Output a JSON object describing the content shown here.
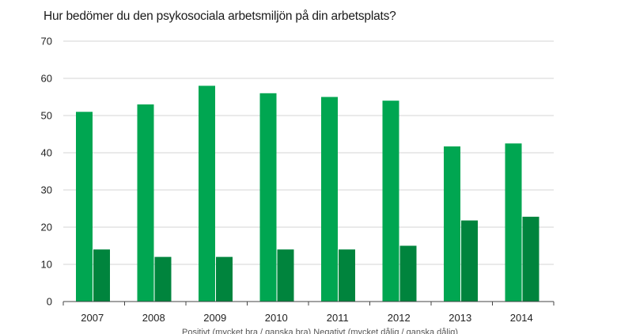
{
  "chart_data": {
    "type": "bar",
    "title": "Hur bedömer du den psykosociala arbetsmiljön på din arbetsplats?",
    "xlabel": "",
    "ylabel": "",
    "categories": [
      "2007",
      "2008",
      "2009",
      "2010",
      "2011",
      "2012",
      "2013",
      "2014"
    ],
    "ylim": [
      0,
      70
    ],
    "yticks": [
      0,
      10,
      20,
      30,
      40,
      50,
      60,
      70
    ],
    "grid": true,
    "series": [
      {
        "name": "Positivt (mycket bra / ganska bra)",
        "color": "#00a651",
        "values": [
          51,
          53,
          58,
          56,
          55,
          54,
          41.7,
          42.5
        ]
      },
      {
        "name": "Negativt (mycket dålig / ganska dålig)",
        "color": "#00843d",
        "values": [
          14,
          12,
          12,
          14,
          14,
          15,
          21.8,
          22.8
        ]
      }
    ],
    "legend_text": "Positivt (mycket bra / ganska bra)     Negativt (mycket dålig / ganska dålig)"
  }
}
